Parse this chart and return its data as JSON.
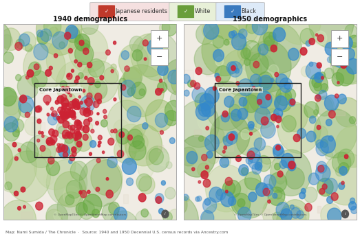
{
  "title_left": "1940 demographics",
  "title_right": "1950 demographics",
  "legend_items": [
    {
      "label": "Japanese residents",
      "color": "#c0392b",
      "bg": "#f5e0e0"
    },
    {
      "label": "White",
      "color": "#6a9e3a",
      "bg": "#e8f0d8"
    },
    {
      "label": "Black",
      "color": "#3a7abf",
      "bg": "#ddeaf8"
    }
  ],
  "footer": "Map: Nami Sumida / The Chronicle  ·  Source: 1940 and 1950 Decennial U.S. census records via Ancestry.com",
  "map_bg": "#f0ece4",
  "box_label": "Core Japantown",
  "copyright": "© OpenMapTiles © OpenStreetMap contributors",
  "fig_bg": "#ffffff",
  "panel_border": "#cccccc",
  "seed_1940": 42,
  "seed_1950": 99,
  "n_japanese_1940": 180,
  "n_white_1940": 55,
  "n_black_1940": 30,
  "n_japanese_1950": 60,
  "n_white_1950": 55,
  "n_black_1950": 120,
  "japanese_color": "#cc2233",
  "white_color": "#6aaa44",
  "black_color": "#3388cc",
  "n_bg_blobs": 45,
  "n_bg_blobs_small": 30
}
